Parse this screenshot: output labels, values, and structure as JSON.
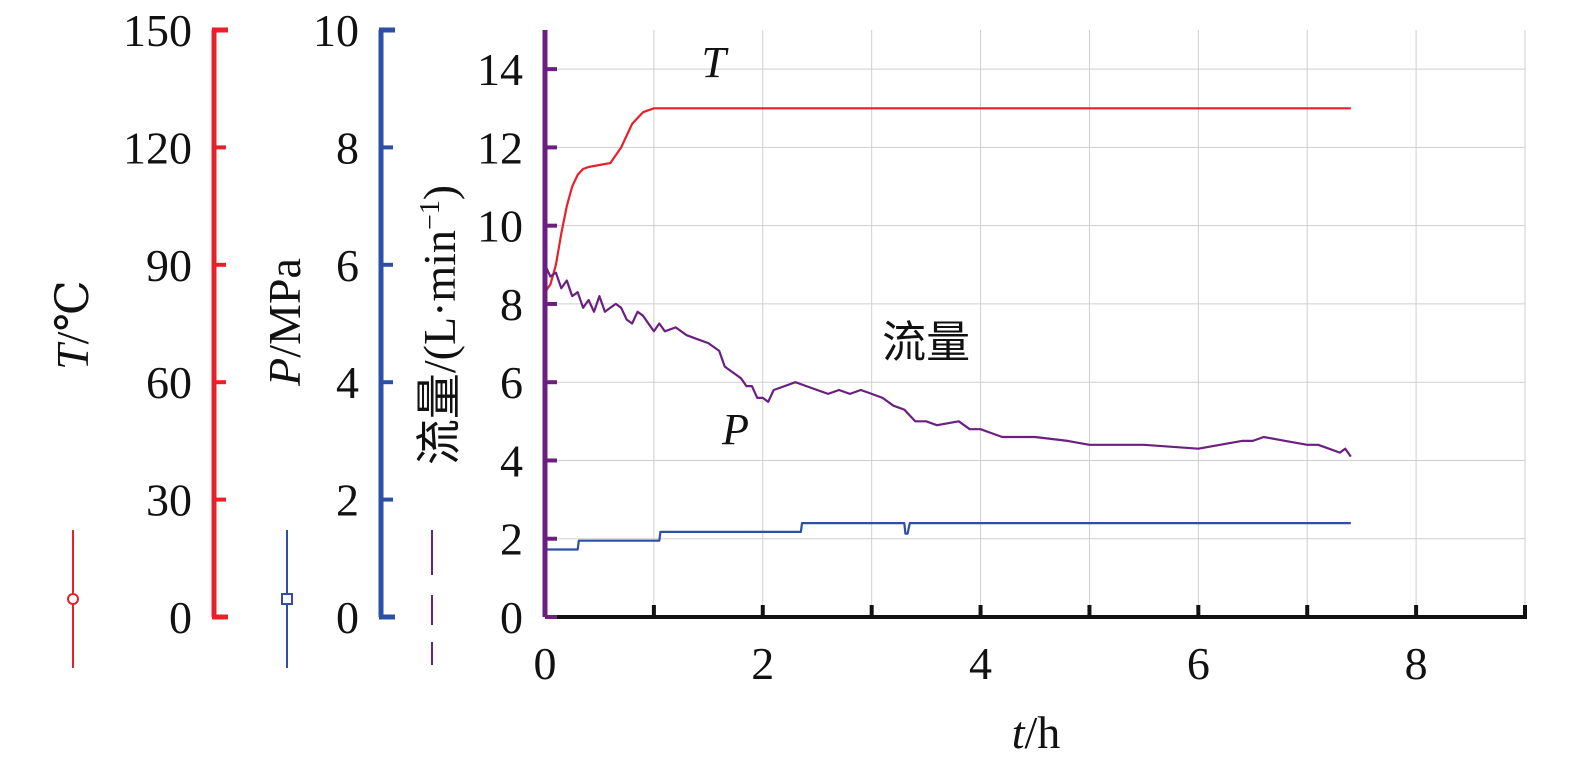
{
  "chart_data": {
    "type": "line",
    "x_axis": {
      "label_var": "t",
      "label_unit": "/h",
      "ticks": [
        0,
        2,
        4,
        6,
        8
      ],
      "range": [
        0,
        9
      ]
    },
    "y_axes": [
      {
        "id": "T",
        "label_var": "T",
        "label_unit": "/℃",
        "ticks": [
          0,
          30,
          60,
          90,
          120,
          150
        ],
        "range": [
          0,
          150
        ],
        "color": "#e8202a",
        "legend_marker": "circle"
      },
      {
        "id": "P",
        "label_var": "P",
        "label_unit": "/MPa",
        "ticks": [
          0,
          2,
          4,
          6,
          8,
          10
        ],
        "range": [
          0,
          10
        ],
        "color": "#2e4fa8",
        "legend_marker": "square"
      },
      {
        "id": "F",
        "label_text": "流量/(L·min",
        "label_sup": "−1",
        "label_close": ")",
        "ticks": [
          0,
          2,
          4,
          6,
          8,
          10,
          12,
          14
        ],
        "range": [
          0,
          15
        ],
        "color": "#6b1f7f",
        "legend_marker": "dash"
      }
    ],
    "grid": true,
    "series": [
      {
        "name": "T",
        "axis": "T",
        "color": "#e8202a",
        "x": [
          0,
          0.05,
          0.1,
          0.15,
          0.2,
          0.25,
          0.3,
          0.35,
          0.4,
          0.5,
          0.6,
          0.7,
          0.8,
          0.9,
          1.0,
          1.2,
          2,
          3,
          4,
          5,
          6,
          7,
          7.4
        ],
        "y": [
          83,
          85,
          90,
          98,
          105,
          110,
          113,
          114.5,
          115,
          115.5,
          116,
          120,
          126,
          129,
          130,
          130,
          130,
          130,
          130,
          130,
          130,
          130,
          130
        ]
      },
      {
        "name": "P",
        "axis": "P",
        "color": "#2e4fa8",
        "x": [
          0,
          0.3,
          0.31,
          1.05,
          1.06,
          2.35,
          2.36,
          3.3,
          3.31,
          3.33,
          3.35,
          7.4
        ],
        "y": [
          1.15,
          1.15,
          1.3,
          1.3,
          1.45,
          1.45,
          1.6,
          1.6,
          1.42,
          1.42,
          1.6,
          1.6
        ]
      },
      {
        "name": "流量",
        "axis": "F",
        "color": "#6b1f7f",
        "x": [
          0,
          0.05,
          0.1,
          0.15,
          0.2,
          0.25,
          0.3,
          0.35,
          0.4,
          0.45,
          0.5,
          0.55,
          0.6,
          0.65,
          0.7,
          0.75,
          0.8,
          0.85,
          0.9,
          0.95,
          1.0,
          1.05,
          1.1,
          1.2,
          1.3,
          1.4,
          1.5,
          1.6,
          1.65,
          1.7,
          1.75,
          1.8,
          1.85,
          1.9,
          1.95,
          2.0,
          2.05,
          2.1,
          2.2,
          2.3,
          2.4,
          2.5,
          2.6,
          2.7,
          2.8,
          2.9,
          3.0,
          3.1,
          3.2,
          3.3,
          3.4,
          3.5,
          3.6,
          3.8,
          3.9,
          4.0,
          4.1,
          4.2,
          4.5,
          4.8,
          5.0,
          5.5,
          6.0,
          6.2,
          6.4,
          6.5,
          6.6,
          6.8,
          7.0,
          7.1,
          7.2,
          7.3,
          7.35,
          7.4
        ],
        "y": [
          9.0,
          8.7,
          8.8,
          8.4,
          8.6,
          8.2,
          8.3,
          7.9,
          8.1,
          7.8,
          8.2,
          7.8,
          7.9,
          8.0,
          7.9,
          7.6,
          7.5,
          7.8,
          7.7,
          7.5,
          7.3,
          7.5,
          7.3,
          7.4,
          7.2,
          7.1,
          7.0,
          6.8,
          6.4,
          6.3,
          6.2,
          6.1,
          5.9,
          5.9,
          5.6,
          5.6,
          5.5,
          5.8,
          5.9,
          6.0,
          5.9,
          5.8,
          5.7,
          5.8,
          5.7,
          5.8,
          5.7,
          5.6,
          5.4,
          5.3,
          5.0,
          5.0,
          4.9,
          5.0,
          4.8,
          4.8,
          4.7,
          4.6,
          4.6,
          4.5,
          4.4,
          4.4,
          4.3,
          4.4,
          4.5,
          4.5,
          4.6,
          4.5,
          4.4,
          4.4,
          4.3,
          4.2,
          4.3,
          4.1
        ]
      }
    ],
    "annotations": [
      {
        "text": "T",
        "italic": true,
        "series": "T"
      },
      {
        "text": "流量",
        "italic": false,
        "series": "流量"
      },
      {
        "text": "P",
        "italic": true,
        "series": "P"
      }
    ]
  }
}
